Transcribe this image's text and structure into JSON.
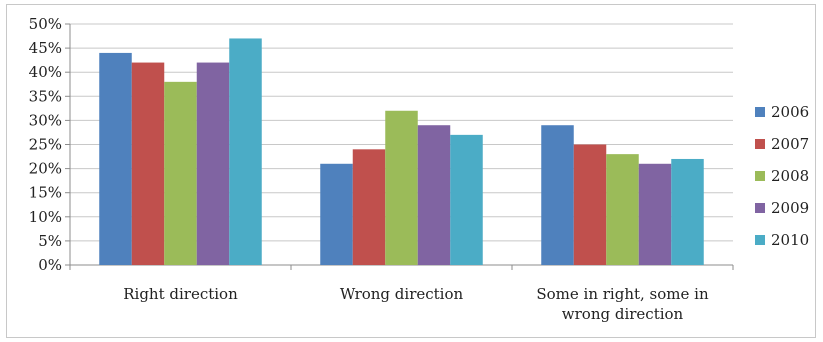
{
  "chart_data": {
    "type": "bar",
    "categories": [
      [
        "Right direction"
      ],
      [
        "Wrong direction"
      ],
      [
        "Some in right, some in",
        "wrong direction"
      ]
    ],
    "series": [
      {
        "name": "2006",
        "color": "#4f81bd",
        "values": [
          44,
          21,
          29
        ]
      },
      {
        "name": "2007",
        "color": "#c0504d",
        "values": [
          42,
          24,
          25
        ]
      },
      {
        "name": "2008",
        "color": "#9bbb59",
        "values": [
          38,
          32,
          23
        ]
      },
      {
        "name": "2009",
        "color": "#8064a2",
        "values": [
          42,
          29,
          21
        ]
      },
      {
        "name": "2010",
        "color": "#4bacc6",
        "values": [
          47,
          27,
          22
        ]
      }
    ],
    "yticks": [
      "0%",
      "5%",
      "10%",
      "15%",
      "20%",
      "25%",
      "30%",
      "35%",
      "40%",
      "45%",
      "50%"
    ],
    "ylim": [
      0,
      50
    ],
    "grid": true,
    "legend": "right"
  }
}
